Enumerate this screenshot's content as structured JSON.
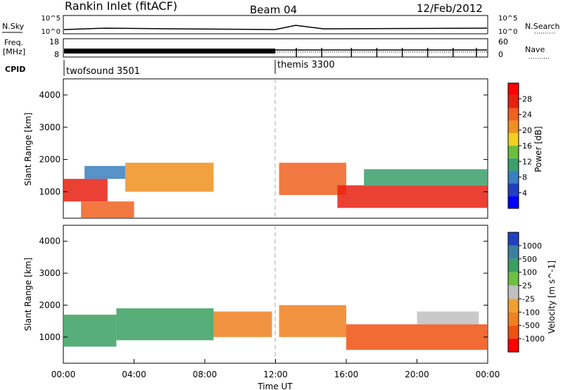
{
  "header": {
    "station": "Rankin Inlet (fitACF)",
    "beam": "Beam 04",
    "date": "12/Feb/2012"
  },
  "noise_panel": {
    "left_label": "N.Sky",
    "right_label": "N.Search",
    "ticks_left": [
      "10^5",
      "10^0"
    ],
    "ticks_right": [
      "10^5",
      "10^0"
    ]
  },
  "freq_panel": {
    "left_label_line1": "Freq.",
    "left_label_line2": "[MHz]",
    "right_label": "Nave",
    "ticks_left": [
      "18",
      "8"
    ],
    "ticks_right": [
      "60",
      "0"
    ]
  },
  "cpid_panel": {
    "label": "CPID",
    "segments": [
      "twofsound 3501",
      "themis 3300"
    ]
  },
  "x_axis": {
    "label": "Time UT",
    "ticks": [
      "00:00",
      "04:00",
      "08:00",
      "12:00",
      "16:00",
      "20:00",
      "00:00"
    ]
  },
  "colors": {
    "power": [
      "#0000ff",
      "#2040c0",
      "#3a7fbf",
      "#3a9f6a",
      "#6cbf3c",
      "#f0d020",
      "#f09020",
      "#f06020",
      "#e82010",
      "#ff0000"
    ],
    "velocity": [
      "#ff0000",
      "#f05010",
      "#f08020",
      "#f0a030",
      "#c0c0c0",
      "#6cc040",
      "#3aa060",
      "#3a80a0",
      "#2040c0"
    ]
  },
  "chart_data": [
    {
      "type": "heatmap",
      "title": "",
      "ylabel": "Slant Range [km]",
      "xlabel": "",
      "y_ticks": [
        "1000",
        "2000",
        "3000",
        "4000"
      ],
      "ylim": [
        180,
        4500
      ],
      "x_hours": [
        0,
        24
      ],
      "colorbar": {
        "label": "Power [dB]",
        "ticks": [
          "4",
          "8",
          "12",
          "16",
          "20",
          "24",
          "28"
        ]
      },
      "bands": [
        {
          "x": [
            0.0,
            2.5
          ],
          "range": [
            700,
            1400
          ],
          "value": 26
        },
        {
          "x": [
            1.0,
            4.0
          ],
          "range": [
            200,
            700
          ],
          "value": 24
        },
        {
          "x": [
            1.2,
            3.5
          ],
          "range": [
            1400,
            1800
          ],
          "value": 8
        },
        {
          "x": [
            3.5,
            8.5
          ],
          "range": [
            1000,
            1900
          ],
          "value": 22
        },
        {
          "x": [
            12.2,
            16.0
          ],
          "range": [
            900,
            1900
          ],
          "value": 24
        },
        {
          "x": [
            15.5,
            24.0
          ],
          "range": [
            500,
            1200
          ],
          "value": 28
        },
        {
          "x": [
            17.0,
            24.0
          ],
          "range": [
            1200,
            1700
          ],
          "value": 12
        }
      ]
    },
    {
      "type": "heatmap",
      "title": "",
      "ylabel": "Slant Range [km]",
      "xlabel": "Time UT",
      "y_ticks": [
        "1000",
        "2000",
        "3000",
        "4000"
      ],
      "ylim": [
        180,
        4500
      ],
      "x_hours": [
        0,
        24
      ],
      "colorbar": {
        "label": "Velocity [m s^-1]",
        "ticks": [
          "1000",
          "500",
          "100",
          "25",
          "-25",
          "-100",
          "-500",
          "-1000"
        ]
      },
      "bands": [
        {
          "x": [
            0.0,
            3.0
          ],
          "range": [
            700,
            1700
          ],
          "value": 300
        },
        {
          "x": [
            3.0,
            8.5
          ],
          "range": [
            900,
            1900
          ],
          "value": 200
        },
        {
          "x": [
            8.5,
            11.8
          ],
          "range": [
            1000,
            1800
          ],
          "value": -300
        },
        {
          "x": [
            12.2,
            16.0
          ],
          "range": [
            1000,
            2000
          ],
          "value": -400
        },
        {
          "x": [
            16.0,
            24.0
          ],
          "range": [
            600,
            1400
          ],
          "value": -500
        },
        {
          "x": [
            20.0,
            23.5
          ],
          "range": [
            1400,
            1800
          ],
          "value": 0
        }
      ]
    }
  ]
}
